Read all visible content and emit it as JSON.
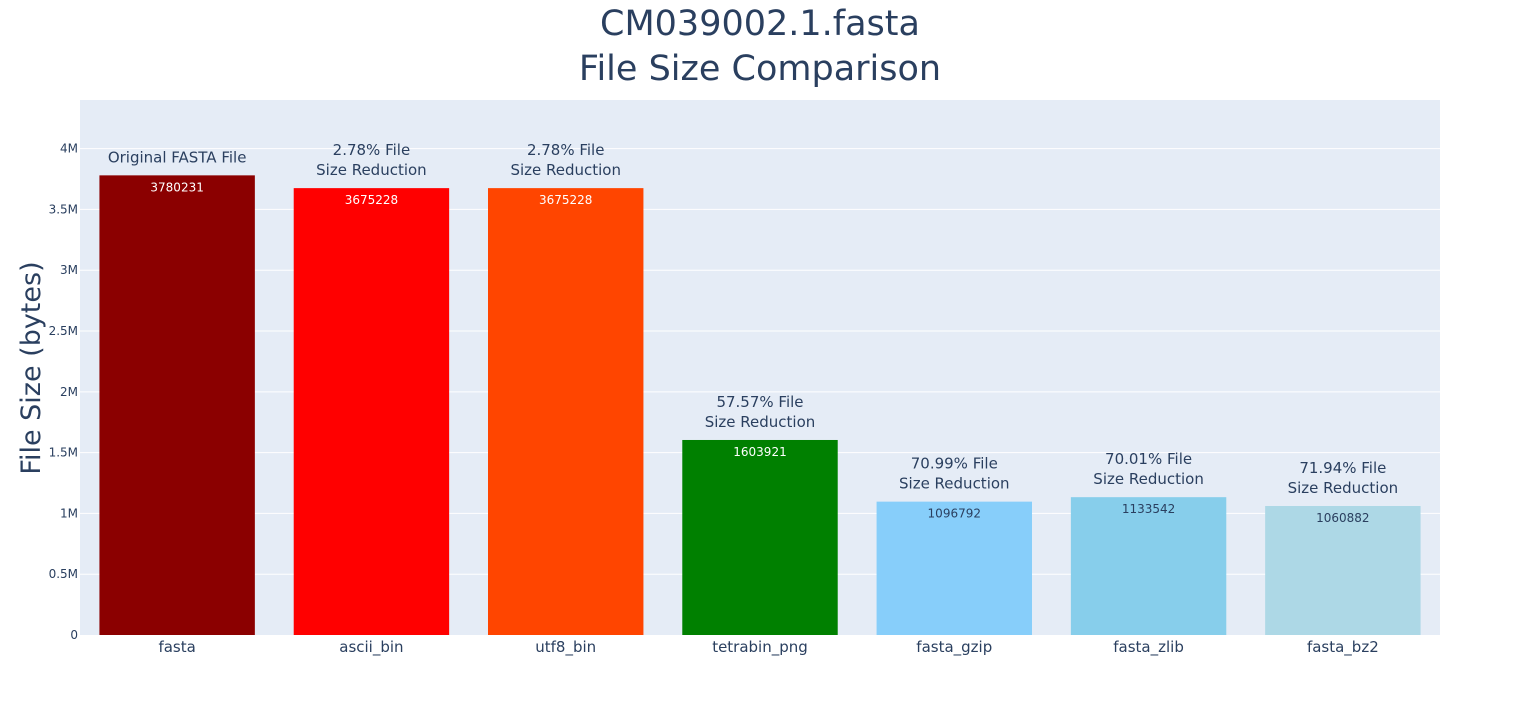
{
  "chart_data": {
    "type": "bar",
    "title_line1": "CM039002.1.fasta",
    "title_line2": "File Size Comparison",
    "xlabel": "",
    "ylabel": "File Size (bytes)",
    "ylim": [
      0,
      4400000
    ],
    "y_ticks": [
      {
        "value": 0,
        "label": "0"
      },
      {
        "value": 500000,
        "label": "0.5M"
      },
      {
        "value": 1000000,
        "label": "1M"
      },
      {
        "value": 1500000,
        "label": "1.5M"
      },
      {
        "value": 2000000,
        "label": "2M"
      },
      {
        "value": 2500000,
        "label": "2.5M"
      },
      {
        "value": 3000000,
        "label": "3M"
      },
      {
        "value": 3500000,
        "label": "3.5M"
      },
      {
        "value": 4000000,
        "label": "4M"
      }
    ],
    "grid": true,
    "legend": "none",
    "categories": [
      "fasta",
      "ascii_bin",
      "utf8_bin",
      "tetrabin_png",
      "fasta_gzip",
      "fasta_zlib",
      "fasta_bz2"
    ],
    "values": [
      3780231,
      3675228,
      3675228,
      1603921,
      1096792,
      1133542,
      1060882
    ],
    "value_labels": [
      "3780231",
      "3675228",
      "3675228",
      "1603921",
      "1096792",
      "1133542",
      "1060882"
    ],
    "colors": [
      "#8b0000",
      "#ff0000",
      "#ff4500",
      "#008000",
      "#87cefa",
      "#87ceeb",
      "#add8e6"
    ],
    "value_label_colors": [
      "#ffffff",
      "#ffffff",
      "#ffffff",
      "#ffffff",
      "#2a3f5f",
      "#2a3f5f",
      "#2a3f5f"
    ],
    "annotations": [
      [
        "Original FASTA File"
      ],
      [
        "2.78% File",
        "Size Reduction"
      ],
      [
        "2.78% File",
        "Size Reduction"
      ],
      [
        "57.57% File",
        "Size Reduction"
      ],
      [
        "70.99% File",
        "Size Reduction"
      ],
      [
        "70.01% File",
        "Size Reduction"
      ],
      [
        "71.94% File",
        "Size Reduction"
      ]
    ],
    "plot_bg": "#e5ecf6",
    "grid_color": "#ffffff",
    "text_color": "#2a3f5f"
  }
}
